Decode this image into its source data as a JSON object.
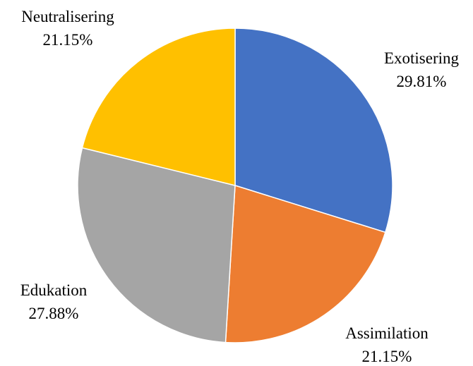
{
  "chart_data": {
    "type": "pie",
    "start_angle_deg": 0,
    "direction": "clockwise",
    "slices": [
      {
        "label": "Exotisering",
        "value": 29.81,
        "value_label": "29.81%",
        "color": "#4472C4"
      },
      {
        "label": "Assimilation",
        "value": 21.15,
        "value_label": "21.15%",
        "color": "#ED7D31"
      },
      {
        "label": "Edukation",
        "value": 27.88,
        "value_label": "27.88%",
        "color": "#A5A5A5"
      },
      {
        "label": "Neutralisering",
        "value": 21.15,
        "value_label": "21.15%",
        "color": "#FFC000"
      }
    ]
  }
}
